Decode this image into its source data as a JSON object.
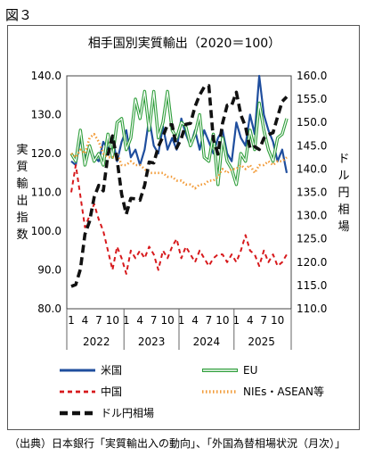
{
  "figure_label": "図３",
  "source": "（出典）日本銀行「実質輸出入の動向」、「外国為替相場状況（月次）」",
  "chart_data": {
    "type": "line",
    "title": "相手国別実質輸出（2020＝100）",
    "ylabel_left": "実質輸出指数",
    "ylabel_right": "ドル円相場",
    "ylim_left": [
      80,
      140
    ],
    "ylim_right": [
      110,
      160
    ],
    "yticks_left": [
      "140.0",
      "130.0",
      "120.0",
      "110.0",
      "100.0",
      "90.0",
      "80.0"
    ],
    "yticks_right": [
      "160.0",
      "155.0",
      "150.0",
      "145.0",
      "140.0",
      "135.0",
      "130.0",
      "125.0",
      "120.0",
      "115.0",
      "110.0"
    ],
    "month_ticks": [
      "1",
      "4",
      "7",
      "10",
      "1",
      "4",
      "7",
      "10",
      "1",
      "4",
      "7",
      "10",
      "1",
      "4",
      "7",
      "10"
    ],
    "years": [
      "2022",
      "2023",
      "2024",
      "2025"
    ],
    "x": [
      "2022-01",
      "2022-02",
      "2022-03",
      "2022-04",
      "2022-05",
      "2022-06",
      "2022-07",
      "2022-08",
      "2022-09",
      "2022-10",
      "2022-11",
      "2022-12",
      "2023-01",
      "2023-02",
      "2023-03",
      "2023-04",
      "2023-05",
      "2023-06",
      "2023-07",
      "2023-08",
      "2023-09",
      "2023-10",
      "2023-11",
      "2023-12",
      "2024-01",
      "2024-02",
      "2024-03",
      "2024-04",
      "2024-05",
      "2024-06",
      "2024-07",
      "2024-08",
      "2024-09",
      "2024-10",
      "2024-11",
      "2024-12",
      "2025-01",
      "2025-02",
      "2025-03",
      "2025-04",
      "2025-05",
      "2025-06",
      "2025-07",
      "2025-08",
      "2025-09",
      "2025-10",
      "2025-11",
      "2025-12"
    ],
    "grid": false,
    "legend_position": "bottom",
    "series": [
      {
        "name": "米国",
        "axis": "left",
        "color": "#1f4e9e",
        "style": "solid",
        "values": [
          118,
          117,
          124,
          119,
          121,
          119,
          118,
          123,
          121,
          124,
          118,
          123,
          126,
          119,
          121,
          117,
          121,
          129,
          122,
          120,
          127,
          121,
          124,
          121,
          129,
          125,
          122,
          126,
          121,
          126,
          123,
          120,
          124,
          126,
          120,
          118,
          128,
          124,
          122,
          130,
          125,
          140,
          130,
          126,
          123,
          118,
          121,
          115
        ]
      },
      {
        "name": "EU",
        "axis": "left",
        "color": "#2e9e3a",
        "style": "double",
        "values": [
          120,
          118,
          126,
          117,
          122,
          118,
          120,
          117,
          125,
          119,
          128,
          129,
          121,
          124,
          134,
          129,
          136,
          126,
          136,
          124,
          128,
          136,
          126,
          124,
          128,
          127,
          122,
          125,
          130,
          119,
          118,
          125,
          112,
          124,
          118,
          116,
          112,
          120,
          118,
          126,
          121,
          133,
          126,
          121,
          118,
          124,
          125,
          129
        ]
      },
      {
        "name": "中国",
        "axis": "left",
        "color": "#d7191c",
        "style": "dashed",
        "values": [
          110,
          117,
          109,
          101,
          104,
          107,
          103,
          100,
          95,
          90,
          96,
          93,
          89,
          95,
          93,
          95,
          93,
          96,
          94,
          90,
          95,
          93,
          96,
          98,
          93,
          96,
          94,
          92,
          95,
          93,
          91,
          93,
          94,
          94,
          92,
          94,
          92,
          95,
          99,
          95,
          94,
          91,
          95,
          92,
          94,
          91,
          92,
          94
        ]
      },
      {
        "name": "NIEs・ASEAN等",
        "axis": "left",
        "color": "#f29b38",
        "style": "dotted",
        "values": [
          120,
          119,
          121,
          120,
          124,
          125,
          123,
          120,
          119,
          119,
          120,
          117,
          117,
          118,
          117,
          117,
          116,
          115,
          115,
          115,
          115,
          114,
          114,
          113,
          113,
          112,
          112,
          111,
          112,
          112,
          113,
          113,
          114,
          116,
          115,
          116,
          116,
          117,
          116,
          117,
          115,
          117,
          117,
          118,
          117,
          118,
          118,
          119
        ]
      },
      {
        "name": "ドル円相場",
        "axis": "right",
        "color": "#111111",
        "style": "bold-dashed",
        "values": [
          114.8,
          115.2,
          118.5,
          126.0,
          128.8,
          133.9,
          136.5,
          135.3,
          143.1,
          147.1,
          142.0,
          134.6,
          130.3,
          133.7,
          133.6,
          133.3,
          136.5,
          141.5,
          141.3,
          144.8,
          147.0,
          149.5,
          149.5,
          144.5,
          146.6,
          149.6,
          149.8,
          153.4,
          155.9,
          157.6,
          157.9,
          146.3,
          143.2,
          149.8,
          153.7,
          153.7,
          156.5,
          151.6,
          149.1,
          144.4,
          144.8,
          144.2,
          146.6,
          147.4,
          147.8,
          151.2,
          154.5,
          155.5
        ]
      }
    ]
  }
}
